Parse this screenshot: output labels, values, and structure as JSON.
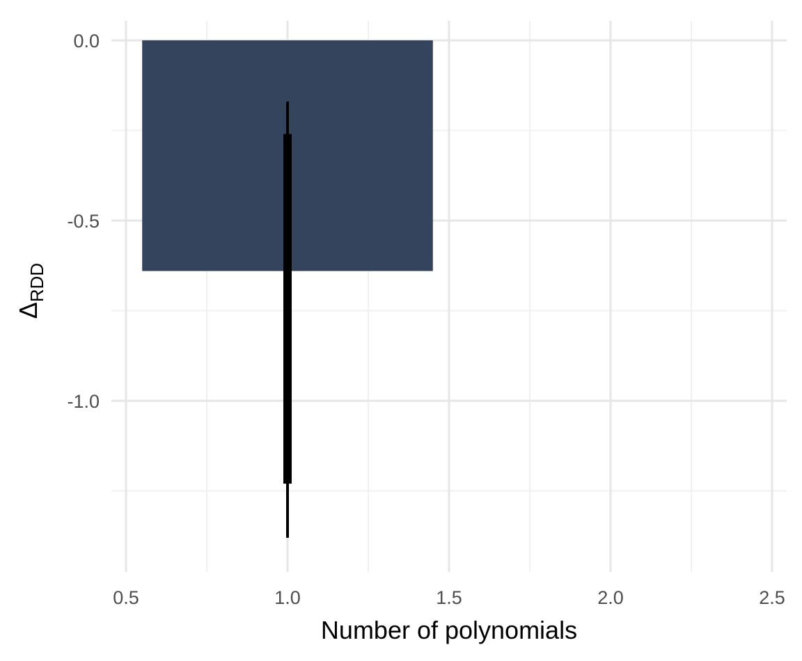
{
  "chart_data": {
    "type": "bar",
    "xlabel": "Number of polynomials",
    "ylabel": "Δ",
    "ylabel_subscript": "RDD",
    "xlim": [
      0.5,
      2.5
    ],
    "ylim": [
      -1.47,
      0.0
    ],
    "x_ticks": [
      {
        "value": 0.5,
        "label": "0.5"
      },
      {
        "value": 1.0,
        "label": "1.0"
      },
      {
        "value": 1.5,
        "label": "1.5"
      },
      {
        "value": 2.0,
        "label": "2.0"
      },
      {
        "value": 2.5,
        "label": "2.5"
      }
    ],
    "y_ticks": [
      {
        "value": 0.0,
        "label": "0.0"
      },
      {
        "value": -0.5,
        "label": "-0.5"
      },
      {
        "value": -1.0,
        "label": "-1.0"
      }
    ],
    "grid": true,
    "legend": "none",
    "bars": [
      {
        "x": 1.0,
        "value": -0.64,
        "x_start": 0.55,
        "x_end": 1.45
      }
    ],
    "intervals": [
      {
        "x": 1.0,
        "outer": [
          -1.38,
          -0.17
        ],
        "inner": [
          -1.23,
          -0.26
        ]
      }
    ],
    "colors": {
      "bar": "#34445c",
      "interval": "#000000",
      "grid_major": "#e6e6e6",
      "grid_minor": "#f0f0f0"
    }
  }
}
